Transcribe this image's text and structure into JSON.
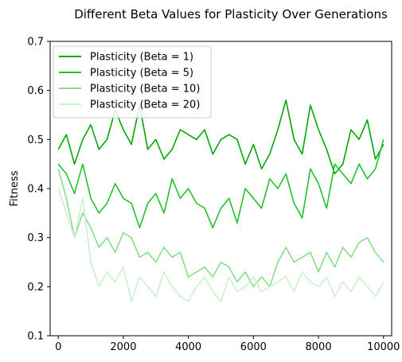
{
  "chart_data": {
    "type": "line",
    "title": "Different Beta Values for Plasticity Over Generations",
    "xlabel": "",
    "ylabel": "Fitness",
    "xlim": [
      -250,
      10250
    ],
    "ylim": [
      0.1,
      0.7
    ],
    "xticks": [
      0,
      2000,
      4000,
      6000,
      8000,
      10000
    ],
    "yticks": [
      0.1,
      0.2,
      0.3,
      0.4,
      0.5,
      0.6,
      0.7
    ],
    "legend_position": "top-left",
    "grid": false,
    "series": [
      {
        "name": "Plasticity (Beta = 1)",
        "color": "#00a600",
        "x": [
          0,
          250,
          500,
          750,
          1000,
          1250,
          1500,
          1750,
          2000,
          2250,
          2500,
          2750,
          3000,
          3250,
          3500,
          3750,
          4000,
          4250,
          4500,
          4750,
          5000,
          5250,
          5500,
          5750,
          6000,
          6250,
          6500,
          6750,
          7000,
          7250,
          7500,
          7750,
          8000,
          8250,
          8500,
          8750,
          9000,
          9250,
          9500,
          9750,
          10000
        ],
        "values": [
          0.48,
          0.51,
          0.45,
          0.5,
          0.53,
          0.48,
          0.5,
          0.56,
          0.52,
          0.49,
          0.57,
          0.48,
          0.5,
          0.46,
          0.48,
          0.52,
          0.51,
          0.5,
          0.52,
          0.47,
          0.5,
          0.51,
          0.5,
          0.45,
          0.49,
          0.44,
          0.47,
          0.52,
          0.58,
          0.5,
          0.47,
          0.57,
          0.52,
          0.48,
          0.43,
          0.45,
          0.52,
          0.5,
          0.54,
          0.46,
          0.49
        ]
      },
      {
        "name": "Plasticity (Beta = 5)",
        "color": "#22c032",
        "x": [
          0,
          250,
          500,
          750,
          1000,
          1250,
          1500,
          1750,
          2000,
          2250,
          2500,
          2750,
          3000,
          3250,
          3500,
          3750,
          4000,
          4250,
          4500,
          4750,
          5000,
          5250,
          5500,
          5750,
          6000,
          6250,
          6500,
          6750,
          7000,
          7250,
          7500,
          7750,
          8000,
          8250,
          8500,
          8750,
          9000,
          9250,
          9500,
          9750,
          10000
        ],
        "values": [
          0.45,
          0.43,
          0.39,
          0.45,
          0.38,
          0.35,
          0.37,
          0.41,
          0.38,
          0.37,
          0.32,
          0.37,
          0.39,
          0.35,
          0.42,
          0.38,
          0.4,
          0.37,
          0.36,
          0.32,
          0.36,
          0.38,
          0.33,
          0.4,
          0.38,
          0.36,
          0.42,
          0.4,
          0.43,
          0.37,
          0.34,
          0.44,
          0.41,
          0.36,
          0.45,
          0.43,
          0.41,
          0.45,
          0.42,
          0.44,
          0.5
        ]
      },
      {
        "name": "Plasticity (Beta = 10)",
        "color": "#88dc8c",
        "x": [
          0,
          250,
          500,
          750,
          1000,
          1250,
          1500,
          1750,
          2000,
          2250,
          2500,
          2750,
          3000,
          3250,
          3500,
          3750,
          4000,
          4250,
          4500,
          4750,
          5000,
          5250,
          5500,
          5750,
          6000,
          6250,
          6500,
          6750,
          7000,
          7250,
          7500,
          7750,
          8000,
          8250,
          8500,
          8750,
          9000,
          9250,
          9500,
          9750,
          10000
        ],
        "values": [
          0.44,
          0.38,
          0.3,
          0.35,
          0.32,
          0.28,
          0.3,
          0.27,
          0.31,
          0.3,
          0.26,
          0.27,
          0.25,
          0.28,
          0.26,
          0.27,
          0.22,
          0.23,
          0.24,
          0.22,
          0.25,
          0.24,
          0.21,
          0.23,
          0.2,
          0.22,
          0.2,
          0.25,
          0.28,
          0.25,
          0.26,
          0.27,
          0.23,
          0.27,
          0.24,
          0.28,
          0.26,
          0.29,
          0.3,
          0.27,
          0.25
        ]
      },
      {
        "name": "Plasticity (Beta = 20)",
        "color": "#cdefd0",
        "x": [
          0,
          250,
          500,
          750,
          1000,
          1250,
          1500,
          1750,
          2000,
          2250,
          2500,
          2750,
          3000,
          3250,
          3500,
          3750,
          4000,
          4250,
          4500,
          4750,
          5000,
          5250,
          5500,
          5750,
          6000,
          6250,
          6500,
          6750,
          7000,
          7250,
          7500,
          7750,
          8000,
          8250,
          8500,
          8750,
          9000,
          9250,
          9500,
          9750,
          10000
        ],
        "values": [
          0.4,
          0.35,
          0.3,
          0.38,
          0.25,
          0.2,
          0.23,
          0.21,
          0.24,
          0.17,
          0.22,
          0.2,
          0.18,
          0.23,
          0.2,
          0.18,
          0.17,
          0.2,
          0.22,
          0.19,
          0.17,
          0.22,
          0.19,
          0.2,
          0.22,
          0.19,
          0.2,
          0.21,
          0.22,
          0.19,
          0.23,
          0.21,
          0.2,
          0.22,
          0.18,
          0.21,
          0.19,
          0.22,
          0.2,
          0.18,
          0.21
        ]
      }
    ]
  }
}
